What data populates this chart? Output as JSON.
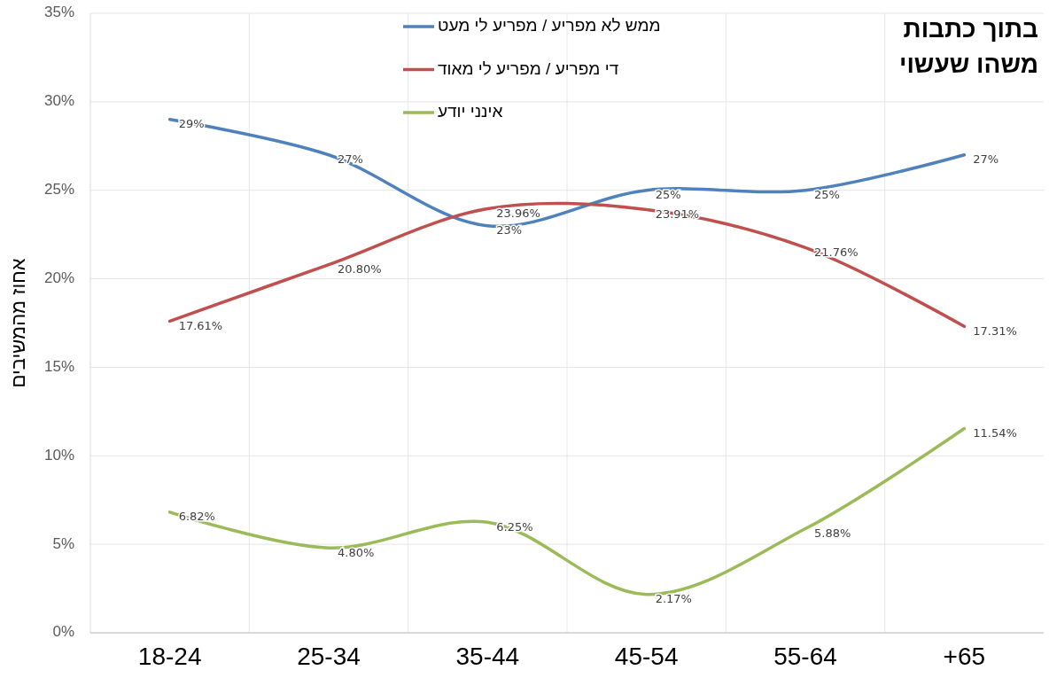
{
  "chart_data": {
    "type": "line",
    "title": "בתוך  כתבות\nמשהו  שעשוי",
    "ylabel": "אחוז מהמשיבים",
    "categories": [
      "18-24",
      "25-34",
      "35-44",
      "45-54",
      "55-64",
      "+65"
    ],
    "series": [
      {
        "name": "ממש לא מפריע / מפריע לי מעט",
        "color": "#4f81bd",
        "values": [
          29,
          27,
          23,
          25,
          25,
          27
        ],
        "value_labels": [
          "29%",
          "27%",
          "23%",
          "25%",
          "25%",
          "27%"
        ]
      },
      {
        "name": "די מפריע / מפריע לי מאוד",
        "color": "#c0504d",
        "values": [
          17.61,
          20.8,
          23.96,
          23.91,
          21.76,
          17.31
        ],
        "value_labels": [
          "17.61%",
          "20.80%",
          "23.96%",
          "23.91%",
          "21.76%",
          "17.31%"
        ]
      },
      {
        "name": "אינני יודע",
        "color": "#9bbb59",
        "values": [
          6.82,
          4.8,
          6.25,
          2.17,
          5.88,
          11.54
        ],
        "value_labels": [
          "6.82%",
          "4.80%",
          "6.25%",
          "2.17%",
          "5.88%",
          "11.54%"
        ]
      }
    ],
    "ylim": [
      0,
      35
    ],
    "yticks": [
      {
        "value": 0,
        "label": "0%"
      },
      {
        "value": 5,
        "label": "5%"
      },
      {
        "value": 10,
        "label": "10%"
      },
      {
        "value": 15,
        "label": "15%"
      },
      {
        "value": 20,
        "label": "20%"
      },
      {
        "value": 25,
        "label": "25%"
      },
      {
        "value": 30,
        "label": "30%"
      },
      {
        "value": 35,
        "label": "35%"
      }
    ],
    "grid": true,
    "legend": "top",
    "marker": "none",
    "line_style": "solid"
  }
}
